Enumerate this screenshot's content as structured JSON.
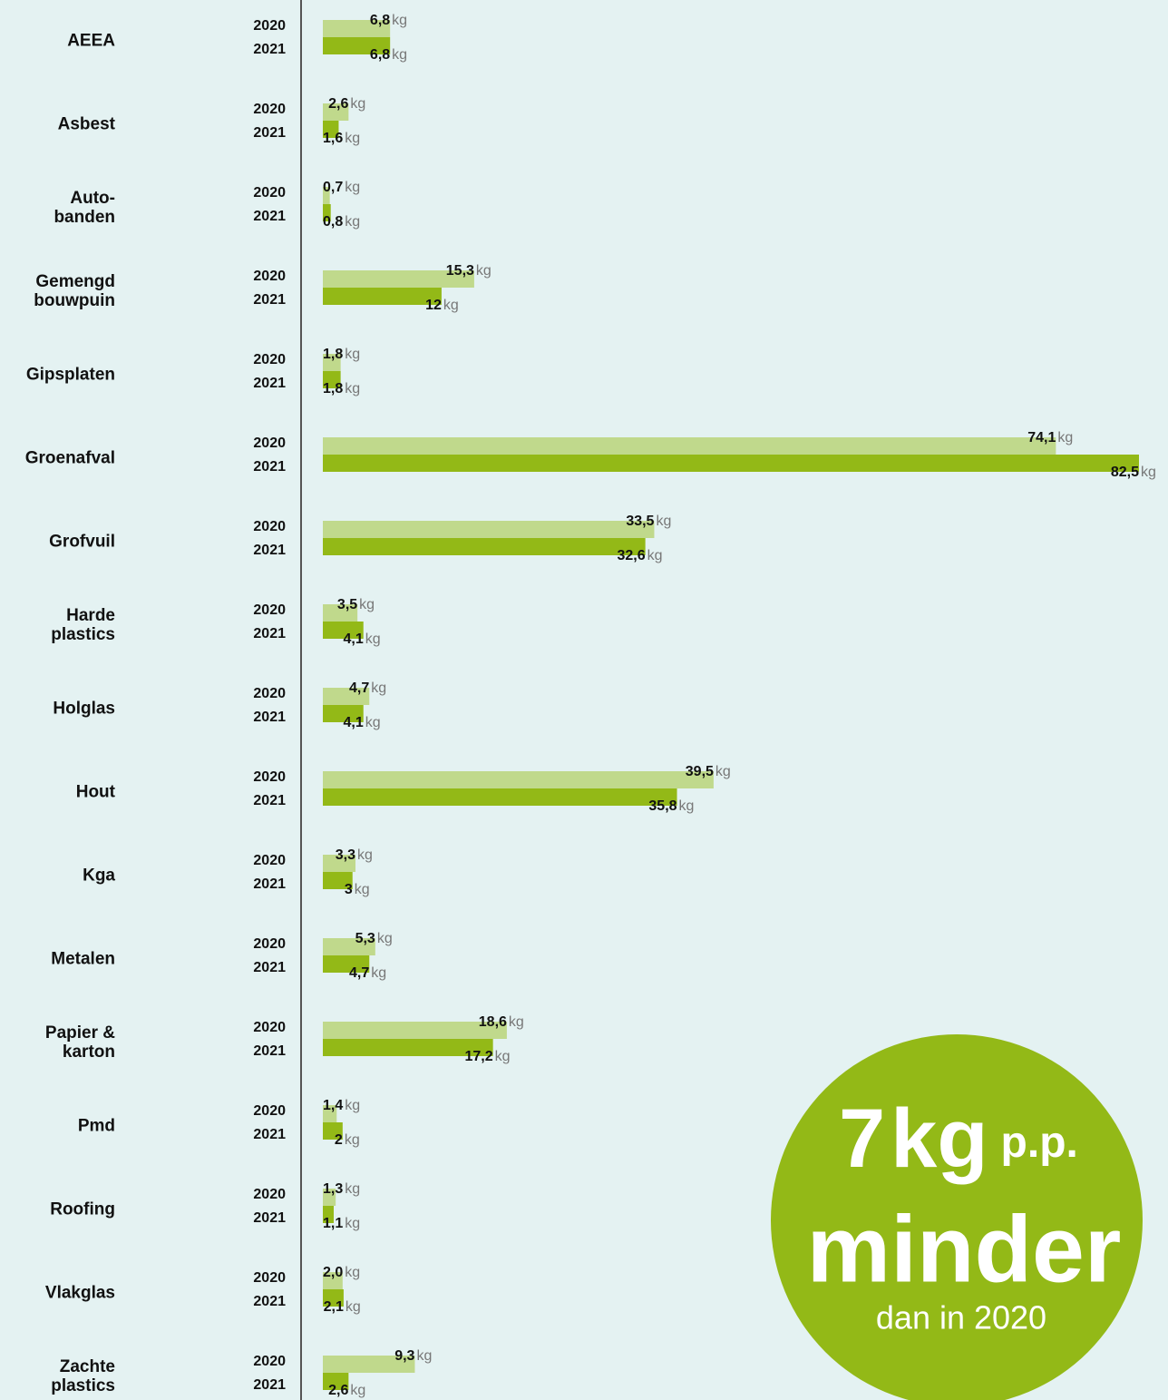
{
  "chart_data": {
    "type": "bar",
    "orientation": "horizontal",
    "unit": "kg",
    "categories": [
      "AEEA",
      "Asbest",
      "Auto-\nbanden",
      "Gemengd\nbouwpuin",
      "Gipsplaten",
      "Groenafval",
      "Grofvuil",
      "Harde\nplastics",
      "Holglas",
      "Hout",
      "Kga",
      "Metalen",
      "Papier &\nkarton",
      "Pmd",
      "Roofing",
      "Vlakglas",
      "Zachte\nplastics"
    ],
    "series": [
      {
        "name": "2020",
        "color": "#c0d98c",
        "values": [
          6.8,
          2.6,
          0.7,
          15.3,
          1.8,
          74.1,
          33.5,
          3.5,
          4.7,
          39.5,
          3.3,
          5.3,
          18.6,
          1.4,
          1.3,
          2.0,
          9.3
        ],
        "value_labels": [
          "6,8",
          "2,6",
          "0,7",
          "15,3",
          "1,8",
          "74,1",
          "33,5",
          "3,5",
          "4,7",
          "39,5",
          "3,3",
          "5,3",
          "18,6",
          "1,4",
          "1,3",
          "2,0",
          "9,3"
        ]
      },
      {
        "name": "2021",
        "color": "#93b917",
        "values": [
          6.8,
          1.6,
          0.8,
          12,
          1.8,
          82.5,
          32.6,
          4.1,
          4.1,
          35.8,
          3,
          4.7,
          17.2,
          2,
          1.1,
          2.1,
          2.6
        ],
        "value_labels": [
          "6,8",
          "1,6",
          "0,8",
          "12",
          "1,8",
          "82,5",
          "32,6",
          "4,1",
          "4,1",
          "35,8",
          "3",
          "4,7",
          "17,2",
          "2",
          "1,1",
          "2,1",
          "2,6"
        ]
      }
    ],
    "xlim": [
      0,
      82.5
    ],
    "callout": {
      "number": "7",
      "unit": "kg",
      "suffix": "p.p.",
      "word": "minder",
      "note": "dan in 2020",
      "color": "#93b917"
    }
  }
}
